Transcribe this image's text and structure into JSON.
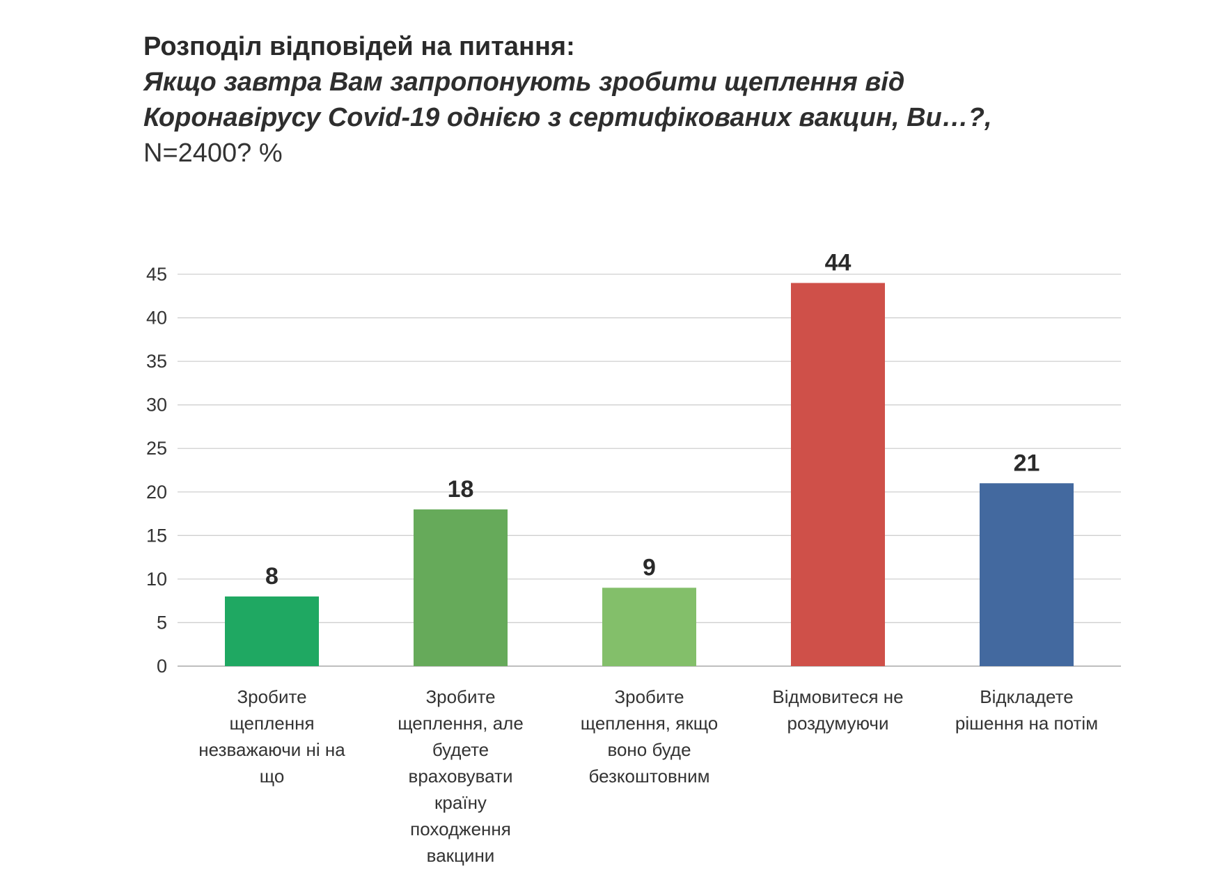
{
  "title": {
    "line1": "Розподіл відповідей на питання:",
    "line2": "Якщо завтра Вам запропонують зробити щеплення від",
    "line3": "Коронавірусу Covid-19 однією з сертифікованих вакцин, Ви…?,",
    "line4": "N=2400? %"
  },
  "chart_data": {
    "type": "bar",
    "categories": [
      "Зробите щеплення незважаючи ні на що",
      "Зробите щеплення, але будете враховувати країну походження вакцини",
      "Зробите щеплення, якщо воно буде безкоштовним",
      "Відмовитеся не роздумуючи",
      "Відкладете рішення на потім"
    ],
    "category_lines": [
      [
        "Зробите",
        "щеплення",
        "незважаючи ні на",
        "що"
      ],
      [
        "Зробите",
        "щеплення, але",
        "будете",
        "враховувати",
        "країну",
        "походження",
        "вакцини"
      ],
      [
        "Зробите",
        "щеплення, якщо",
        "воно буде",
        "безкоштовним"
      ],
      [
        "Відмовитеся не",
        "роздумуючи"
      ],
      [
        "Відкладете",
        "рішення на потім"
      ]
    ],
    "values": [
      8,
      18,
      9,
      44,
      21
    ],
    "colors": [
      "#1fa862",
      "#66aa5a",
      "#83bf6a",
      "#cf5049",
      "#43699f"
    ],
    "ylim": [
      0,
      45
    ],
    "yticks": [
      0,
      5,
      10,
      15,
      20,
      25,
      30,
      35,
      40,
      45
    ],
    "grid": true,
    "data_labels": true,
    "legend": "none"
  }
}
